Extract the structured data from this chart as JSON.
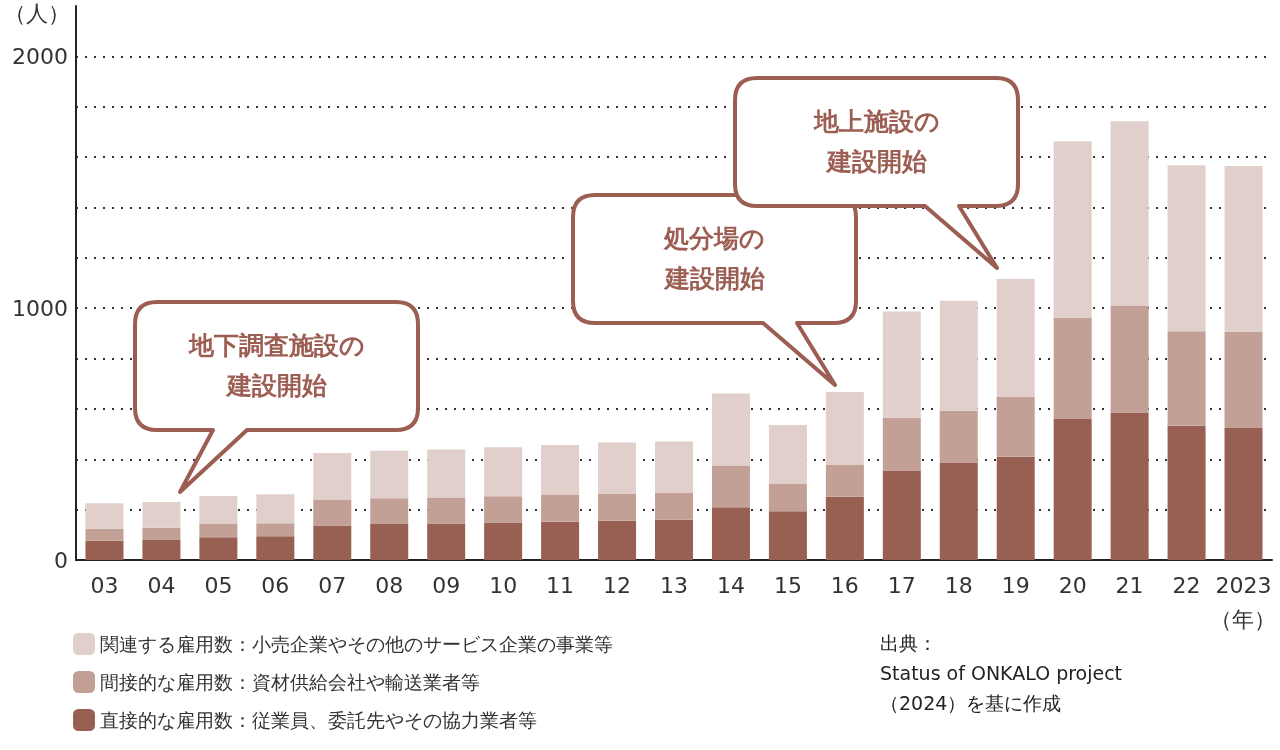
{
  "chart_data": {
    "type": "bar",
    "stacked": true,
    "ylabel": "（人）",
    "xlabel": "（年）",
    "categories": [
      "03",
      "04",
      "05",
      "06",
      "07",
      "08",
      "09",
      "10",
      "11",
      "12",
      "13",
      "14",
      "15",
      "16",
      "17",
      "18",
      "19",
      "20",
      "21",
      "22",
      "2023"
    ],
    "series": [
      {
        "name": "直接的な雇用数：従業員、委託先やその協力業者等",
        "color": "#985f53",
        "values": [
          76,
          79,
          90,
          94,
          137,
          143,
          145,
          149,
          152,
          156,
          160,
          209,
          194,
          251,
          355,
          385,
          410,
          560,
          586,
          533,
          524
        ]
      },
      {
        "name": "間接的な雇用数：資材供給会社や輸送業者等",
        "color": "#c2a096",
        "values": [
          48,
          49,
          53,
          52,
          103,
          102,
          103,
          104,
          106,
          106,
          106,
          164,
          110,
          128,
          210,
          208,
          237,
          402,
          425,
          375,
          382
        ]
      },
      {
        "name": "関連する雇用数：小売企業やその他のサービス企業の事業等",
        "color": "#e1cfcc",
        "values": [
          101,
          102,
          111,
          115,
          185,
          189,
          191,
          195,
          199,
          205,
          205,
          288,
          232,
          288,
          422,
          437,
          469,
          701,
          731,
          660,
          659
        ]
      }
    ],
    "ylim": [
      0,
      2200
    ],
    "yticks": [
      0,
      {
        "value": 200,
        "label": null
      },
      {
        "value": 400,
        "label": null
      },
      {
        "value": 600,
        "label": null
      },
      {
        "value": 800,
        "label": null
      },
      1000,
      {
        "value": 1200,
        "label": null
      },
      {
        "value": 1400,
        "label": null
      },
      {
        "value": 1600,
        "label": null
      },
      {
        "value": 1800,
        "label": null
      },
      2000
    ],
    "grid": "y",
    "legend": "bottom left",
    "annotations": [
      "地下調査施設の建設開始",
      "処分場の建設開始",
      "地上施設の建設開始",
      "出典：\nStatus of ONKALO project\n（2024）を基に作成"
    ]
  }
}
